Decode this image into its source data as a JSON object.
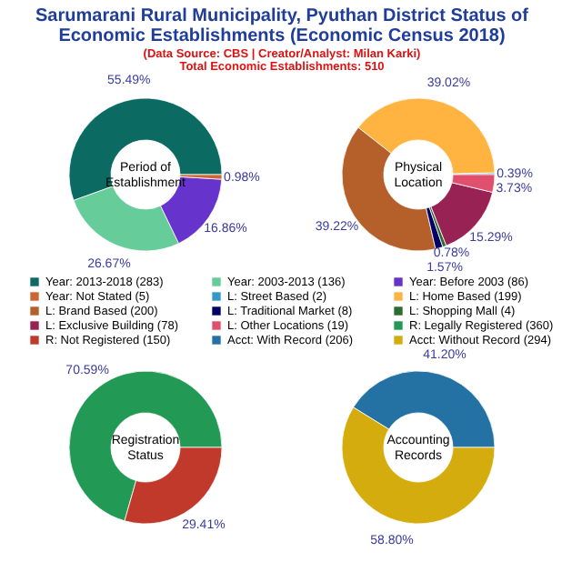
{
  "chart_data": [
    {
      "type": "other",
      "title": "Sarumarani Rural Municipality, Pyuthan District Status of Economic Establishments (Economic Census 2018)",
      "subtitle": "(Data Source: CBS | Creator/Analyst: Milan Karki)",
      "annotations": [
        "Total Economic Establishments: 510"
      ]
    },
    {
      "type": "donut",
      "title": "Period of Establishment",
      "categories": [
        "Year: 2013-2018 (283)",
        "Year: 2003-2013 (136)",
        "Year: Before 2003 (86)",
        "Year: Not Stated (5)"
      ],
      "values": [
        55.49,
        26.67,
        16.86,
        0.98
      ],
      "colors": [
        "#0b6b63",
        "#66cc99",
        "#6633cc",
        "#cc6633"
      ],
      "value_labels": [
        "55.49%",
        "26.67%",
        "16.86%",
        "0.98%"
      ],
      "legend": "bottom"
    },
    {
      "type": "donut",
      "title": "Physical Location",
      "categories": [
        "L: Street Based (2)",
        "L: Home Based (199)",
        "L: Brand Based (200)",
        "L: Traditional Market (8)",
        "L: Shopping Mall (4)",
        "L: Exclusive Building (78)",
        "L: Other Locations (19)"
      ],
      "values": [
        0.39,
        39.02,
        39.22,
        1.57,
        0.78,
        15.29,
        3.73
      ],
      "colors": [
        "#3399cc",
        "#ffb340",
        "#b5602a",
        "#000066",
        "#2e6b2e",
        "#992255",
        "#e0506e"
      ],
      "value_labels": [
        "0.39%",
        "39.02%",
        "39.22%",
        "1.57%",
        "0.78%",
        "15.29%",
        "3.73%"
      ],
      "legend": "bottom"
    },
    {
      "type": "donut",
      "title": "Registration Status",
      "categories": [
        "R: Legally Registered (360)",
        "R: Not Registered (150)"
      ],
      "values": [
        70.59,
        29.41
      ],
      "colors": [
        "#229955",
        "#c0392b"
      ],
      "value_labels": [
        "70.59%",
        "29.41%"
      ],
      "legend": "top"
    },
    {
      "type": "donut",
      "title": "Accounting Records",
      "categories": [
        "Acct: With Record (206)",
        "Acct: Without Record (294)"
      ],
      "values": [
        41.2,
        58.8
      ],
      "colors": [
        "#2471a3",
        "#d4ac0d"
      ],
      "value_labels": [
        "41.20%",
        "58.80%"
      ],
      "legend": "top"
    }
  ]
}
